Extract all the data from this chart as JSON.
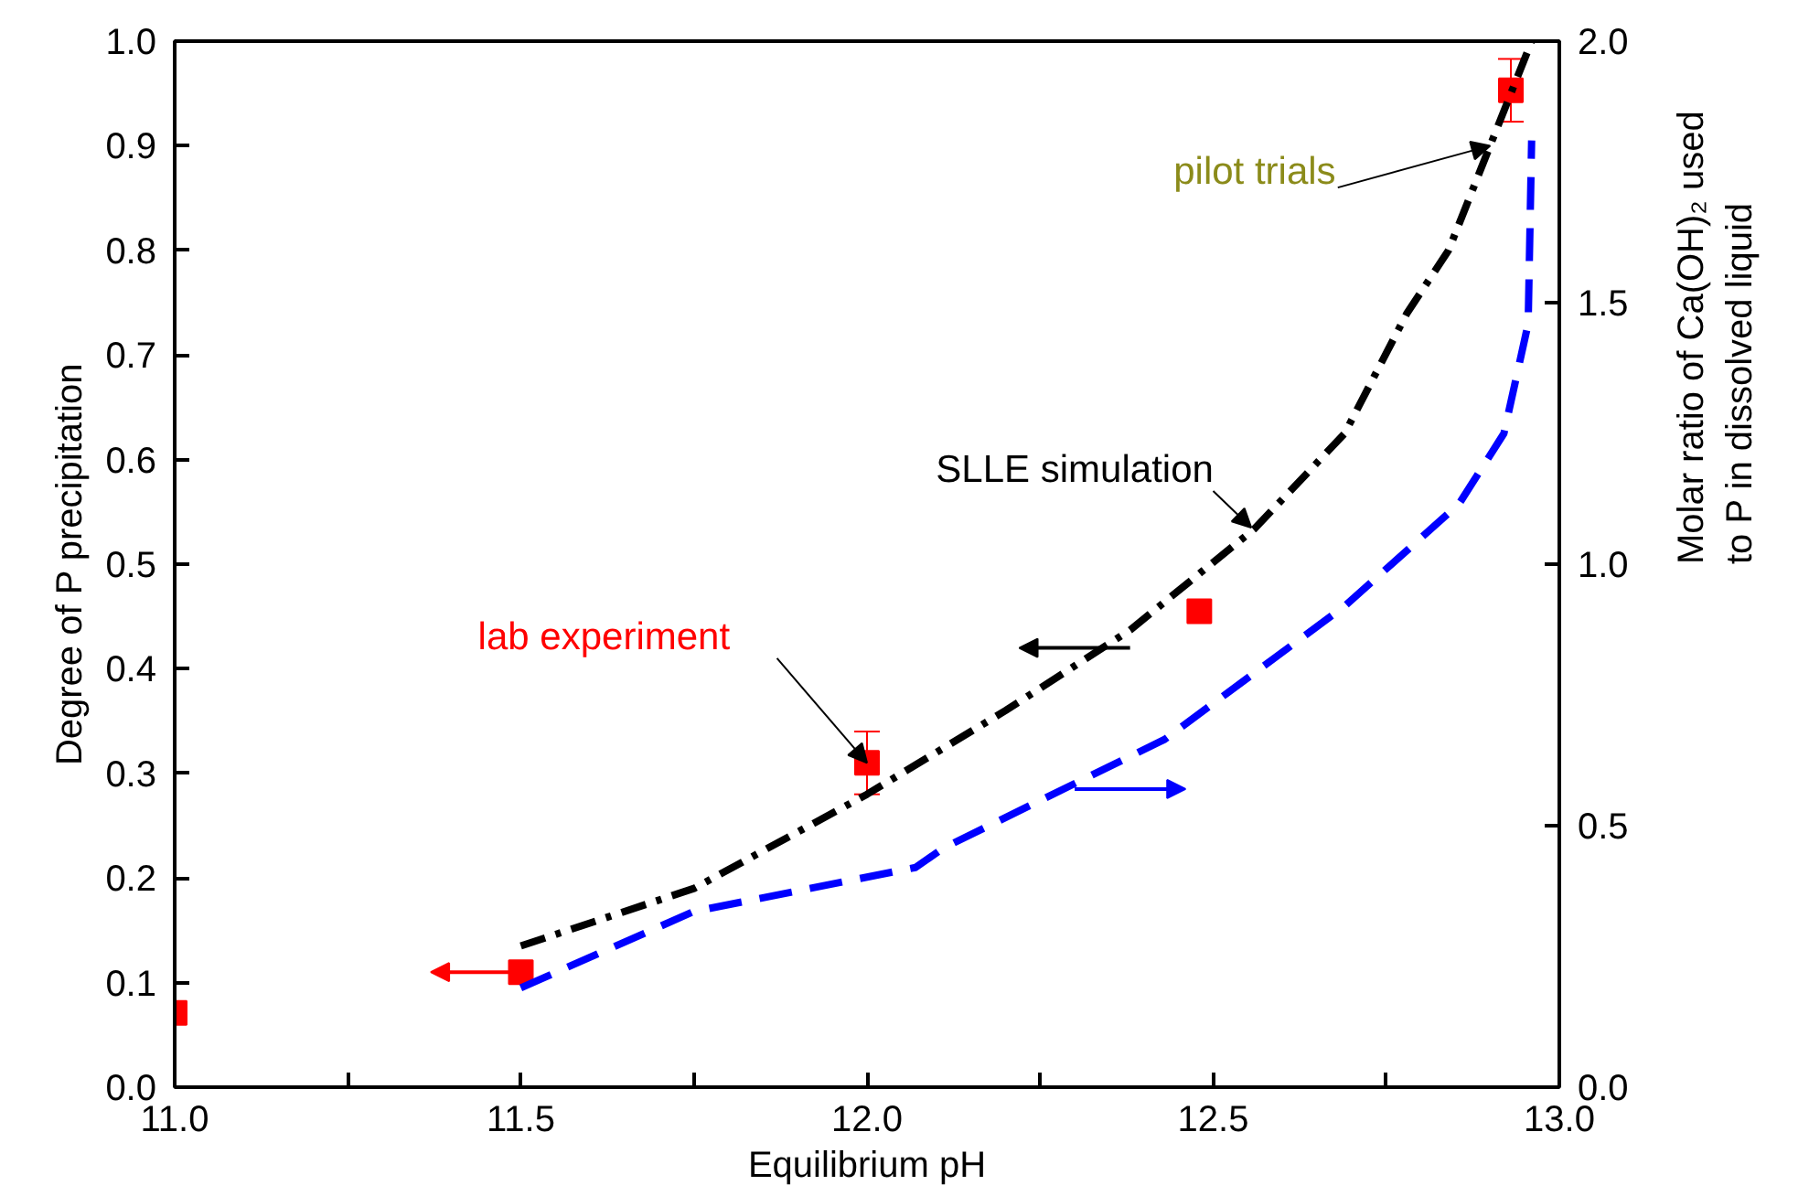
{
  "chart_data": {
    "type": "line",
    "xlabel": "Equilibrium pH",
    "ylabel": "Degree of P precipitation",
    "y2label": "Molar ratio of Ca(OH)₂ used\nto P in dissolved liquid",
    "xlim": [
      11.0,
      13.0
    ],
    "xticks": [
      {
        "value": 11.0,
        "label": "11.0"
      },
      {
        "value": 11.25,
        "label": null
      },
      11.5,
      {
        "value": 11.75,
        "label": null
      },
      {
        "value": 12.0,
        "label": "12.0"
      },
      {
        "value": 12.25,
        "label": null
      },
      12.5,
      {
        "value": 12.75,
        "label": null
      },
      {
        "value": 13.0,
        "label": "13.0"
      }
    ],
    "ylim": [
      0,
      1.0
    ],
    "yticks": [
      {
        "value": 0,
        "label": "0.0"
      },
      0.1,
      0.2,
      0.3,
      0.4,
      0.5,
      0.6,
      0.7,
      0.8,
      0.9,
      {
        "value": 1.0,
        "label": "1.0"
      }
    ],
    "y2lim": [
      0,
      2.0
    ],
    "y2ticks": [
      {
        "value": 0,
        "label": "0.0"
      },
      0.5,
      {
        "value": 1.0,
        "label": "1.0"
      },
      1.5,
      {
        "value": 2.0,
        "label": "2.0"
      }
    ],
    "grid": false,
    "series": [
      {
        "type": "scatter",
        "color": "#ff0000",
        "marker": "square",
        "x": [
          11.0,
          11.5,
          12.0,
          12.48,
          12.93
        ],
        "values": [
          0.071,
          0.11,
          0.31,
          0.455,
          0.953
        ],
        "errors": [
          null,
          null,
          0.03,
          null,
          0.03
        ]
      },
      {
        "color": "#000000",
        "line_style": "dashdot",
        "x": [
          11.5,
          11.75,
          12.0,
          12.2,
          12.38,
          12.56,
          12.69,
          12.78,
          12.84,
          12.9,
          12.96
        ],
        "values": [
          0.135,
          0.19,
          0.28,
          0.36,
          0.437,
          0.534,
          0.625,
          0.74,
          0.8,
          0.9,
          1.0
        ]
      },
      {
        "color": "#0000ff",
        "line_style": "dashed",
        "axis": "y2",
        "x": [
          11.5,
          11.75,
          12.07,
          12.11,
          12.43,
          12.69,
          12.855,
          12.92,
          12.955,
          12.96
        ],
        "values": [
          0.19,
          0.336,
          0.42,
          0.457,
          0.665,
          0.92,
          1.115,
          1.25,
          1.46,
          1.81
        ]
      }
    ],
    "annotations": [
      {
        "text": "lab experiment",
        "x": 12.0,
        "y": 0.31
      },
      {
        "text": "SLLE simulation",
        "x": 12.555,
        "y": 0.535
      },
      {
        "text": "pilot trials",
        "x": 12.9,
        "y": 0.9
      }
    ]
  }
}
